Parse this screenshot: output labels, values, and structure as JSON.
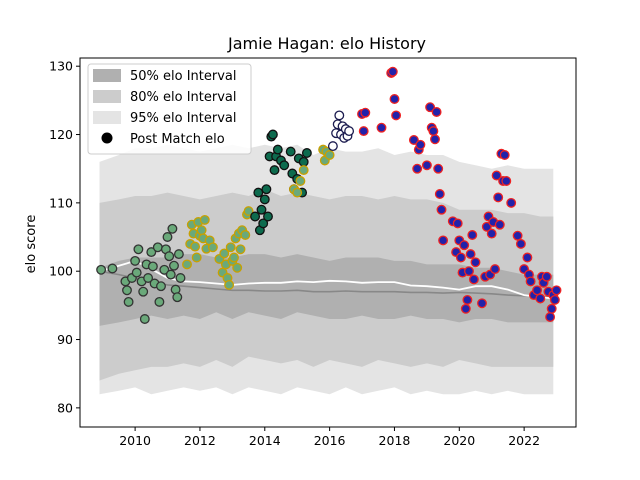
{
  "chart_data": {
    "type": "scatter",
    "title": "Jamie Hagan: elo History",
    "xlabel": "",
    "ylabel": "elo score",
    "xlim": [
      2008.3,
      2023.6
    ],
    "ylim": [
      77.2,
      131.2
    ],
    "x_ticks": [
      2010,
      2012,
      2014,
      2016,
      2018,
      2020,
      2022
    ],
    "y_ticks": [
      80,
      90,
      100,
      110,
      120,
      130
    ],
    "grid": false,
    "legend_position": "top-left",
    "legend": {
      "band50": "50% elo Interval",
      "band80": "80% elo Interval",
      "band95": "95% elo Interval",
      "points": "Post Match elo"
    },
    "bands": {
      "x": [
        2008.9,
        2009.5,
        2010.0,
        2010.5,
        2011.0,
        2011.5,
        2012.0,
        2012.5,
        2013.0,
        2013.5,
        2014.0,
        2014.5,
        2015.0,
        2015.5,
        2016.0,
        2016.5,
        2017.0,
        2017.5,
        2018.0,
        2018.5,
        2019.0,
        2019.5,
        2020.0,
        2020.5,
        2021.0,
        2021.5,
        2022.0,
        2022.5,
        2022.9
      ],
      "p95_low": [
        82,
        82.5,
        83,
        82,
        82.5,
        83,
        82.5,
        83,
        82,
        83,
        82.5,
        82,
        83,
        82.5,
        82,
        83,
        82,
        82.5,
        83,
        82,
        82.5,
        82,
        82,
        82.5,
        82,
        82.5,
        82,
        82,
        82
      ],
      "p80_low": [
        84,
        85,
        85.5,
        86,
        86,
        86.5,
        86,
        87,
        86,
        87.5,
        87,
        86.5,
        87,
        86,
        87,
        86.5,
        86,
        87,
        86.5,
        86,
        86.5,
        86,
        87,
        86.5,
        86,
        86,
        86,
        86,
        86
      ],
      "p50_low": [
        92,
        92.5,
        93,
        93.5,
        93,
        93.5,
        93,
        94,
        93,
        94,
        93.5,
        93,
        94,
        93.5,
        93,
        93,
        93.5,
        93,
        93,
        93.5,
        93,
        93,
        92.5,
        93,
        93,
        92.5,
        92.5,
        92.5,
        92.5
      ],
      "p50_high": [
        100.5,
        101.5,
        102,
        102,
        102,
        102.5,
        102.5,
        102,
        102,
        102.5,
        102.5,
        102,
        102.5,
        102,
        101.5,
        102,
        102,
        102,
        101.5,
        101.5,
        101,
        101,
        101,
        100.5,
        100.5,
        100,
        99.5,
        99.5,
        99.5
      ],
      "p80_high": [
        110,
        110.5,
        111,
        111,
        111.5,
        111,
        110.5,
        111,
        111.5,
        111,
        112,
        111,
        111.5,
        111,
        110.5,
        111,
        111,
        110.5,
        111,
        110.5,
        110.5,
        110,
        109,
        109,
        109,
        108.5,
        108.5,
        108,
        108
      ],
      "p95_high": [
        116,
        117,
        118,
        118,
        118.5,
        118,
        117.5,
        118,
        118.5,
        118,
        118.5,
        118,
        118.5,
        117,
        118,
        117.5,
        117.5,
        118,
        117,
        117.5,
        117,
        117,
        116,
        115.5,
        115,
        115.5,
        115,
        115,
        115
      ]
    },
    "series": [
      {
        "name": "median",
        "color": "#888888",
        "x": [
          2008.9,
          2009.5,
          2010.0,
          2010.5,
          2011.0,
          2011.5,
          2012.0,
          2012.5,
          2013.0,
          2013.5,
          2014.0,
          2014.5,
          2015.0,
          2015.5,
          2016.0,
          2016.5,
          2017.0,
          2017.5,
          2018.0,
          2018.5,
          2019.0,
          2019.5,
          2020.0,
          2020.5,
          2021.0,
          2021.5,
          2022.0,
          2022.5,
          2022.9
        ],
        "y": [
          100,
          99.5,
          99,
          98.5,
          98,
          97.8,
          97.6,
          97.4,
          97.2,
          97.2,
          97.1,
          97.1,
          97.2,
          97,
          97,
          97.1,
          97,
          97,
          97,
          96.9,
          96.9,
          96.8,
          96.9,
          96.8,
          96.7,
          96.5,
          96.4,
          96.3,
          96.2
        ]
      },
      {
        "name": "mean",
        "color": "#ffffff",
        "x": [
          2008.9,
          2009.5,
          2010.0,
          2010.5,
          2011.0,
          2011.5,
          2012.0,
          2012.5,
          2013.0,
          2013.5,
          2014.0,
          2014.5,
          2015.0,
          2015.5,
          2016.0,
          2016.5,
          2017.0,
          2017.5,
          2018.0,
          2018.5,
          2019.0,
          2019.5,
          2020.0,
          2020.5,
          2021.0,
          2021.5,
          2022.0,
          2022.5,
          2022.9
        ],
        "y": [
          100,
          100.8,
          101.5,
          100.3,
          99,
          98.5,
          98.4,
          98.2,
          98,
          98.2,
          98.3,
          98.3,
          98.5,
          98.4,
          98.6,
          98.5,
          98.3,
          98.4,
          98.4,
          97.9,
          97.8,
          97.6,
          97.3,
          97.8,
          97.8,
          97.3,
          96.5,
          96.2,
          96
        ]
      }
    ],
    "points": [
      {
        "fill": "#6aa97a",
        "edge": "#333333",
        "pts": [
          [
            2008.95,
            100.2
          ],
          [
            2009.3,
            100.4
          ],
          [
            2009.7,
            98.5
          ],
          [
            2009.75,
            97.2
          ],
          [
            2009.8,
            95.5
          ],
          [
            2009.9,
            99.0
          ],
          [
            2010.0,
            101.5
          ],
          [
            2010.05,
            99.8
          ],
          [
            2010.1,
            103.2
          ],
          [
            2010.2,
            98.5
          ],
          [
            2010.25,
            97.0
          ],
          [
            2010.3,
            93.0
          ],
          [
            2010.35,
            101.0
          ],
          [
            2010.4,
            99.0
          ],
          [
            2010.5,
            102.8
          ],
          [
            2010.55,
            100.7
          ],
          [
            2010.6,
            98.2
          ],
          [
            2010.7,
            103.5
          ],
          [
            2010.75,
            95.5
          ],
          [
            2010.8,
            97.8
          ],
          [
            2010.9,
            100.2
          ],
          [
            2010.95,
            103.2
          ],
          [
            2011.0,
            105.0
          ],
          [
            2011.05,
            102.2
          ],
          [
            2011.1,
            99.5
          ],
          [
            2011.15,
            106.2
          ],
          [
            2011.2,
            100.8
          ],
          [
            2011.25,
            97.3
          ],
          [
            2011.3,
            96.2
          ],
          [
            2011.35,
            102.5
          ],
          [
            2011.4,
            99.0
          ]
        ]
      },
      {
        "fill": "#6aa97a",
        "edge": "#c9a000",
        "pts": [
          [
            2011.6,
            101.0
          ],
          [
            2011.7,
            104.0
          ],
          [
            2011.75,
            106.8
          ],
          [
            2011.8,
            105.5
          ],
          [
            2011.85,
            103.6
          ],
          [
            2011.9,
            102.0
          ],
          [
            2011.95,
            107.2
          ],
          [
            2012.0,
            105.2
          ],
          [
            2012.05,
            106.0
          ],
          [
            2012.1,
            104.8
          ],
          [
            2012.15,
            107.5
          ],
          [
            2012.2,
            103.3
          ],
          [
            2012.3,
            104.5
          ],
          [
            2012.4,
            103.5
          ],
          [
            2012.6,
            101.8
          ],
          [
            2012.7,
            99.8
          ],
          [
            2012.75,
            102.6
          ],
          [
            2012.8,
            101.0
          ],
          [
            2012.85,
            99.0
          ],
          [
            2012.9,
            98.0
          ],
          [
            2012.95,
            103.5
          ],
          [
            2013.0,
            101.5
          ],
          [
            2013.05,
            102.0
          ],
          [
            2013.1,
            104.8
          ],
          [
            2013.15,
            100.5
          ],
          [
            2013.2,
            105.5
          ],
          [
            2013.25,
            103.2
          ],
          [
            2013.3,
            106.0
          ],
          [
            2013.4,
            105.3
          ],
          [
            2013.45,
            108.3
          ],
          [
            2013.5,
            108.8
          ]
        ]
      },
      {
        "fill": "#0d6b4e",
        "edge": "#111111",
        "pts": [
          [
            2013.7,
            108.0
          ],
          [
            2013.8,
            111.5
          ],
          [
            2013.85,
            106.0
          ],
          [
            2013.9,
            109.0
          ],
          [
            2013.95,
            107.0
          ],
          [
            2014.0,
            110.5
          ],
          [
            2014.05,
            112.0
          ],
          [
            2014.1,
            108.0
          ],
          [
            2014.15,
            116.8
          ],
          [
            2014.2,
            119.7
          ],
          [
            2014.25,
            120.0
          ],
          [
            2014.3,
            114.8
          ],
          [
            2014.35,
            116.8
          ],
          [
            2014.4,
            117.8
          ],
          [
            2014.5,
            116.2
          ],
          [
            2014.6,
            115.5
          ],
          [
            2014.8,
            117.5
          ],
          [
            2014.85,
            114.3
          ],
          [
            2014.9,
            112.0
          ],
          [
            2015.0,
            113.5
          ],
          [
            2015.05,
            116.5
          ],
          [
            2015.15,
            111.5
          ],
          [
            2015.2,
            116.0
          ],
          [
            2015.3,
            117.3
          ]
        ]
      },
      {
        "fill": "#6aa97a",
        "edge": "#c9a000",
        "pts": [
          [
            2014.9,
            112.0
          ],
          [
            2015.0,
            111.5
          ],
          [
            2015.1,
            113.2
          ],
          [
            2015.2,
            114.8
          ],
          [
            2015.8,
            117.8
          ],
          [
            2015.85,
            116.2
          ],
          [
            2015.9,
            117.5
          ],
          [
            2016.0,
            117.0
          ]
        ]
      },
      {
        "fill": "#ffffff",
        "edge": "#1a1a4e",
        "pts": [
          [
            2016.1,
            118.3
          ],
          [
            2016.2,
            120.2
          ],
          [
            2016.25,
            121.5
          ],
          [
            2016.3,
            122.8
          ],
          [
            2016.35,
            120.0
          ],
          [
            2016.4,
            121.2
          ],
          [
            2016.45,
            119.5
          ],
          [
            2016.5,
            120.8
          ],
          [
            2016.55,
            119.8
          ],
          [
            2016.6,
            120.5
          ]
        ]
      },
      {
        "fill": "#2222aa",
        "edge": "#ee2222",
        "pts": [
          [
            2017.0,
            123.0
          ],
          [
            2017.05,
            120.5
          ],
          [
            2017.1,
            123.2
          ],
          [
            2017.6,
            121.0
          ],
          [
            2017.9,
            129.0
          ],
          [
            2017.95,
            129.2
          ],
          [
            2018.0,
            125.2
          ],
          [
            2018.05,
            122.8
          ],
          [
            2018.6,
            119.2
          ],
          [
            2018.7,
            115.0
          ],
          [
            2018.75,
            117.8
          ],
          [
            2018.8,
            118.5
          ],
          [
            2019.0,
            115.5
          ],
          [
            2019.1,
            124.0
          ],
          [
            2019.15,
            121.0
          ],
          [
            2019.2,
            120.5
          ],
          [
            2019.25,
            119.3
          ],
          [
            2019.3,
            123.3
          ],
          [
            2019.35,
            115.0
          ],
          [
            2019.4,
            111.3
          ],
          [
            2019.45,
            109.0
          ],
          [
            2019.5,
            104.5
          ],
          [
            2019.8,
            107.3
          ],
          [
            2019.9,
            102.8
          ],
          [
            2019.95,
            107.0
          ],
          [
            2020.0,
            104.5
          ],
          [
            2020.05,
            102.0
          ],
          [
            2020.1,
            99.8
          ],
          [
            2020.15,
            103.8
          ],
          [
            2020.2,
            94.5
          ],
          [
            2020.25,
            95.8
          ],
          [
            2020.3,
            100.0
          ],
          [
            2020.35,
            102.5
          ],
          [
            2020.4,
            105.3
          ],
          [
            2020.45,
            98.8
          ],
          [
            2020.5,
            101.3
          ],
          [
            2020.7,
            95.3
          ],
          [
            2020.8,
            99.2
          ],
          [
            2020.85,
            106.5
          ],
          [
            2020.9,
            108.0
          ],
          [
            2020.95,
            99.5
          ],
          [
            2021.0,
            105.5
          ],
          [
            2021.05,
            107.2
          ],
          [
            2021.1,
            100.3
          ],
          [
            2021.15,
            114.0
          ],
          [
            2021.2,
            110.8
          ],
          [
            2021.25,
            106.8
          ],
          [
            2021.3,
            117.2
          ],
          [
            2021.35,
            113.2
          ],
          [
            2021.4,
            117.0
          ],
          [
            2021.45,
            113.2
          ],
          [
            2021.6,
            110.0
          ],
          [
            2021.8,
            105.2
          ],
          [
            2021.9,
            104.0
          ],
          [
            2022.0,
            100.3
          ],
          [
            2022.1,
            102.0
          ],
          [
            2022.15,
            99.5
          ],
          [
            2022.2,
            98.5
          ],
          [
            2022.3,
            96.5
          ],
          [
            2022.4,
            97.2
          ],
          [
            2022.5,
            96.0
          ],
          [
            2022.55,
            99.2
          ],
          [
            2022.6,
            98.3
          ],
          [
            2022.7,
            99.2
          ],
          [
            2022.75,
            97.0
          ],
          [
            2022.8,
            93.3
          ],
          [
            2022.85,
            94.5
          ],
          [
            2022.9,
            96.5
          ],
          [
            2022.95,
            95.8
          ],
          [
            2023.0,
            97.2
          ]
        ]
      }
    ]
  }
}
